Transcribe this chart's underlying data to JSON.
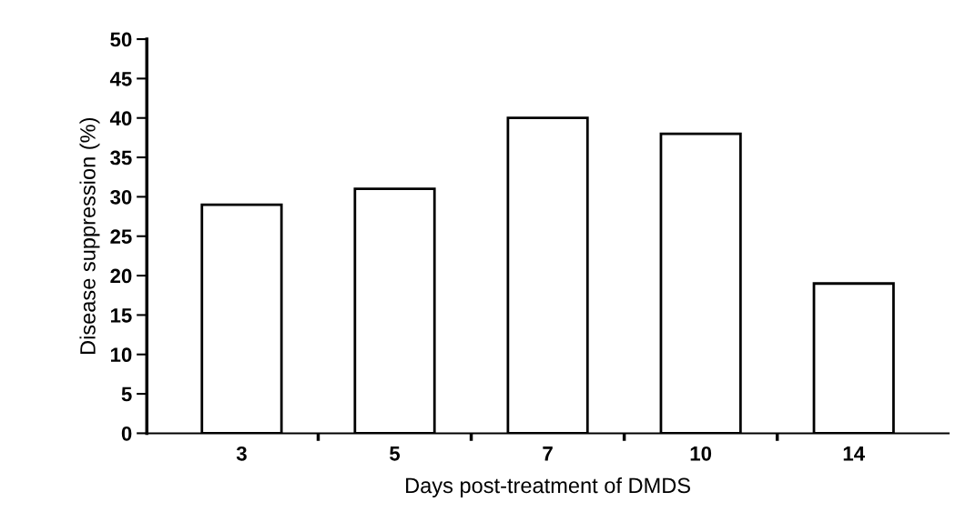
{
  "chart_data": {
    "type": "bar",
    "xlabel": "Days post-treatment of DMDS",
    "ylabel": "Disease suppression (%)",
    "categories": [
      "3",
      "5",
      "7",
      "10",
      "14"
    ],
    "values": [
      29,
      31,
      40,
      38,
      19
    ],
    "color": "#ffffff",
    "ylim": [
      0,
      50
    ],
    "yticks": [
      0,
      5,
      10,
      15,
      20,
      25,
      30,
      35,
      40,
      45,
      50
    ],
    "grid": false
  }
}
